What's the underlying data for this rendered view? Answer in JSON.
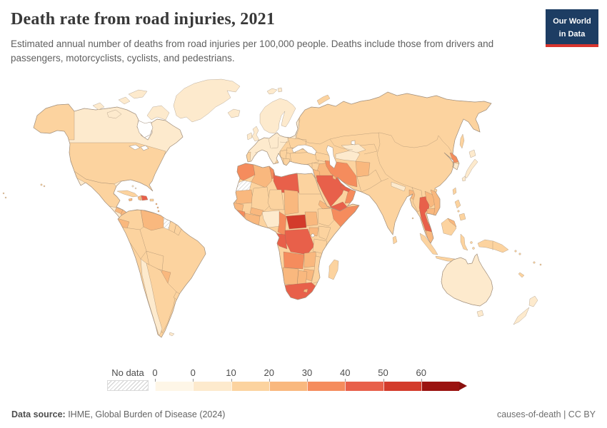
{
  "header": {
    "title": "Death rate from road injuries, 2021",
    "subtitle": "Estimated annual number of deaths from road injuries per 100,000 people. Deaths include those from drivers and passengers, motorcyclists, cyclists, and pedestrians."
  },
  "logo": {
    "line1": "Our World",
    "line2": "in Data",
    "bg": "#1d3d63",
    "bar": "#d8352e"
  },
  "legend": {
    "no_data_label": "No data",
    "tick_labels": [
      "0",
      "0",
      "10",
      "20",
      "30",
      "40",
      "50",
      "60"
    ],
    "bin_colors": [
      "#fef6e7",
      "#fdeacd",
      "#fcd39f",
      "#f9b87e",
      "#f58c5d",
      "#e8604a",
      "#d33b2b",
      "#9b1310"
    ],
    "arrow_color": "#8a100e"
  },
  "footer": {
    "source_label": "Data source:",
    "source_text": " IHME, Global Burden of Disease (2024)",
    "right_text": "causes-of-death | CC BY"
  },
  "map": {
    "sea_color": "#ffffff",
    "coast_stroke": "#a3917e",
    "country_bins": {
      "canada": 1,
      "usa": 2,
      "mexico": 2,
      "guatemala": 3,
      "honduras": 3,
      "costa-panama": 3,
      "greenland": 1,
      "cuba": 2,
      "jamaica": 3,
      "haiti": 3,
      "dominican-republic": 5,
      "puerto-rico": 2,
      "bahamas": 1,
      "lesser-antilles": 3,
      "trinidad": 3,
      "hawaii": 2,
      "colombia": 2,
      "venezuela": 3,
      "guyana": "nodata",
      "suriname": 2,
      "french-guiana": 2,
      "ecuador": 3,
      "peru": 2,
      "brazil": 2,
      "bolivia": 2,
      "paraguay": 3,
      "chile": 1,
      "argentina": 2,
      "uruguay": 2,
      "falklands": 1,
      "iceland": 1,
      "uk": 1,
      "ireland": 1,
      "europe": 1,
      "scandinavia": 1,
      "svalbard": 1,
      "portugal": 2,
      "baltics": 2,
      "ukraine": 2,
      "romania": 2,
      "balkans": 2,
      "greece": 2,
      "turkey": 2,
      "caucasus": 2,
      "russia": 2,
      "novaya-zemlya": 2,
      "syria": 2,
      "iraq": 3,
      "jordan": 3,
      "saudi-arabia": 5,
      "yemen": 5,
      "oman": 4,
      "uae": 5,
      "kuwait": 3,
      "iran": 4,
      "turkmenistan": 1,
      "uzbekistan": 1,
      "afghanistan": 3,
      "pakistan": 2,
      "nepal": 1,
      "bangladesh": 3,
      "myanmar": 2,
      "thailand": 5,
      "laos": 3,
      "vietnam": 3,
      "cambodia": 3,
      "malaysia": 3,
      "north-korea": 4,
      "south-korea": 1,
      "japan": 1,
      "sakhalin": 2,
      "taiwan": 2,
      "hainan": 2,
      "philippines": 2,
      "sumatra": 2,
      "java": 2,
      "borneo": 2,
      "borneo-malaysia": 3,
      "sulawesi": 2,
      "lesser-sunda": 2,
      "moluccas": 2,
      "sri-lanka": 2,
      "andaman": 2,
      "new-guinea": 2,
      "solomon": 2,
      "fiji": 2,
      "new-caledonia": 2,
      "australia": 1,
      "tasmania": 1,
      "new-zealand-north": 1,
      "new-zealand-south": 1,
      "morocco": 4,
      "western-sahara": "nodata",
      "algeria": 3,
      "tunisia": 4,
      "libya": 5,
      "egypt": 2,
      "mauritania": 3,
      "mali": 2,
      "niger": 2,
      "chad": 3,
      "sudan": 2,
      "senegal": 3,
      "guinea": 4,
      "ivory-ghana": 3,
      "burkina": 3,
      "nigeria": 1,
      "cameroon": 4,
      "central-african-republic": 6,
      "south-sudan": 3,
      "ethiopia": 2,
      "eritrea": 3,
      "somalia": 4,
      "kenya": 2,
      "uganda": 3,
      "drc": 5,
      "congo-gabon": 5,
      "tanzania": 2,
      "angola": 4,
      "zambia": 3,
      "mozambique": 2,
      "zimbabwe": 3,
      "namibia": 3,
      "botswana": 3,
      "south-africa": 5,
      "lesotho": 3,
      "madagascar": 2
    }
  },
  "chart_data": {
    "type": "choropleth_map",
    "title": "Death rate from road injuries, 2021",
    "unit": "deaths per 100,000 people",
    "year": "2021",
    "legend_bins": [
      "0",
      "0–10",
      "10–20",
      "20–30",
      "30–40",
      "40–50",
      "50–60",
      "60+"
    ],
    "legend_position": "bottom",
    "no_data": [
      "Guyana",
      "Western Sahara"
    ],
    "countries": {
      "Canada": "0–10",
      "United States": "10–20",
      "Mexico": "10–20",
      "Guatemala": "20–30",
      "Honduras": "20–30",
      "Cuba": "10–20",
      "Haiti": "20–30",
      "Dominican Republic": "40–50",
      "Jamaica": "20–30",
      "Colombia": "10–20",
      "Venezuela": "20–30",
      "Guyana": "No data",
      "Suriname": "10–20",
      "Ecuador": "20–30",
      "Peru": "10–20",
      "Brazil": "10–20",
      "Bolivia": "10–20",
      "Paraguay": "20–30",
      "Chile": "0–10",
      "Argentina": "10–20",
      "Uruguay": "10–20",
      "Iceland": "0–10",
      "United Kingdom": "0–10",
      "Ireland": "0–10",
      "France": "0–10",
      "Spain": "0–10",
      "Portugal": "10–20",
      "Germany": "0–10",
      "Norway": "0–10",
      "Sweden": "0–10",
      "Finland": "0–10",
      "Poland": "0–10",
      "Italy": "0–10",
      "Greece": "10–20",
      "Romania": "10–20",
      "Ukraine": "10–20",
      "Belarus": "0–10",
      "Russia": "10–20",
      "Turkey": "10–20",
      "Morocco": "30–40",
      "Western Sahara": "No data",
      "Algeria": "20–30",
      "Tunisia": "30–40",
      "Libya": "40–50",
      "Egypt": "10–20",
      "Mauritania": "20–30",
      "Mali": "10–20",
      "Niger": "10–20",
      "Chad": "20–30",
      "Sudan": "10–20",
      "Senegal": "20–30",
      "Guinea": "30–40",
      "Cote d'Ivoire": "20–30",
      "Burkina Faso": "20–30",
      "Nigeria": "0–10",
      "Cameroon": "30–40",
      "Central African Republic": "50–60",
      "South Sudan": "20–30",
      "Ethiopia": "10–20",
      "Eritrea": "20–30",
      "Somalia": "30–40",
      "Kenya": "10–20",
      "Uganda": "20–30",
      "Democratic Republic of Congo": "40–50",
      "Congo": "40–50",
      "Gabon": "40–50",
      "Tanzania": "10–20",
      "Angola": "30–40",
      "Zambia": "20–30",
      "Zimbabwe": "20–30",
      "Mozambique": "10–20",
      "Namibia": "20–30",
      "Botswana": "20–30",
      "South Africa": "40–50",
      "Lesotho": "20–30",
      "Madagascar": "10–20",
      "Syria": "10–20",
      "Iraq": "20–30",
      "Jordan": "20–30",
      "Saudi Arabia": "40–50",
      "Yemen": "40–50",
      "Oman": "30–40",
      "United Arab Emirates": "40–50",
      "Kuwait": "20–30",
      "Iran": "30–40",
      "Kazakhstan": "10–20",
      "Turkmenistan": "0–10",
      "Uzbekistan": "0–10",
      "Afghanistan": "20–30",
      "Pakistan": "10–20",
      "India": "10–20",
      "Nepal": "0–10",
      "Bangladesh": "20–30",
      "Sri Lanka": "10–20",
      "Myanmar": "10–20",
      "Thailand": "40–50",
      "Laos": "20–30",
      "Vietnam": "20–30",
      "Cambodia": "20–30",
      "Malaysia": "20–30",
      "China": "10–20",
      "Mongolia": "10–20",
      "North Korea": "30–40",
      "South Korea": "0–10",
      "Japan": "0–10",
      "Taiwan": "10–20",
      "Philippines": "10–20",
      "Indonesia": "10–20",
      "Papua New Guinea": "10–20",
      "Australia": "0–10",
      "New Zealand": "0–10"
    }
  }
}
